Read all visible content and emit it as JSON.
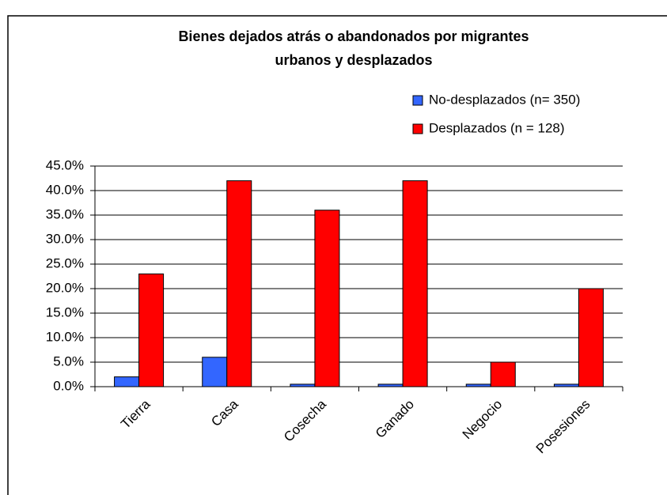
{
  "chart_data": {
    "type": "bar",
    "title": [
      "Bienes dejados atrás o abandonados por migrantes",
      "urbanos y desplazados"
    ],
    "categories": [
      "Tierra",
      "Casa",
      "Cosecha",
      "Ganado",
      "Negocio",
      "Posesiones"
    ],
    "series": [
      {
        "name": "No-desplazados (n= 350)",
        "color": "#3366ff",
        "values": [
          2,
          6,
          0.5,
          0.5,
          0.5,
          0.5
        ]
      },
      {
        "name": "Desplazados (n = 128)",
        "color": "#ff0000",
        "values": [
          23,
          42,
          36,
          42,
          5,
          20
        ]
      }
    ],
    "ylim": [
      0,
      45
    ],
    "yticks": [
      {
        "value": 0,
        "label": "0.0%"
      },
      {
        "value": 5,
        "label": "5.0%"
      },
      {
        "value": 10,
        "label": "10.0%"
      },
      {
        "value": 15,
        "label": "15.0%"
      },
      {
        "value": 20,
        "label": "20.0%"
      },
      {
        "value": 25,
        "label": "25.0%"
      },
      {
        "value": 30,
        "label": "30.0%"
      },
      {
        "value": 35,
        "label": "35.0%"
      },
      {
        "value": 40,
        "label": "40.0%"
      },
      {
        "value": 45,
        "label": "45.0%"
      }
    ],
    "grid": true,
    "legend": "top-right"
  }
}
